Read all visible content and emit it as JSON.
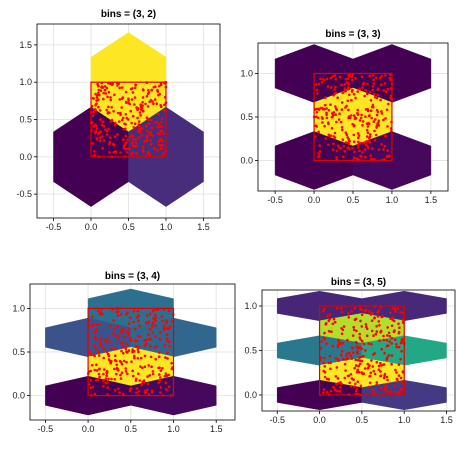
{
  "chart_data": [
    {
      "type": "heatmap",
      "subtype": "hexbin",
      "title": "bins = (3, 2)",
      "xlim": [
        -0.72,
        1.72
      ],
      "ylim": [
        -0.82,
        1.78
      ],
      "xticks": [
        "-0.5",
        "0.0",
        "0.5",
        "1.0",
        "1.5"
      ],
      "xtick_values": [
        -0.5,
        0,
        0.5,
        1,
        1.5
      ],
      "yticks": [
        "-0.5",
        "0.0",
        "0.5",
        "1.0",
        "1.5"
      ],
      "ytick_values": [
        -0.5,
        0,
        0.5,
        1,
        1.5
      ],
      "grid": true,
      "hexagons": [
        {
          "cx": 0.5,
          "cy": 1.0,
          "color": "#fde725"
        },
        {
          "cx": 0.0,
          "cy": 0.0,
          "color": "#440154"
        },
        {
          "cx": 1.0,
          "cy": 0.0,
          "color": "#472d7b"
        }
      ],
      "rect": {
        "x0": 0,
        "y0": 0,
        "x1": 1,
        "y1": 1,
        "color": "#e00000"
      },
      "points": {
        "count": 300,
        "color": "#ff0000",
        "range": [
          0,
          1
        ]
      }
    },
    {
      "type": "heatmap",
      "subtype": "hexbin",
      "title": "bins = (3, 3)",
      "xlim": [
        -0.72,
        1.72
      ],
      "ylim": [
        -0.35,
        1.35
      ],
      "xticks": [
        "-0.5",
        "0.0",
        "0.5",
        "1.0",
        "1.5"
      ],
      "xtick_values": [
        -0.5,
        0,
        0.5,
        1,
        1.5
      ],
      "yticks": [
        "0.0",
        "0.5",
        "1.0"
      ],
      "ytick_values": [
        0,
        0.5,
        1
      ],
      "grid": true,
      "hexagons": [
        {
          "cx": 0.0,
          "cy": 1.0,
          "color": "#440154"
        },
        {
          "cx": 1.0,
          "cy": 1.0,
          "color": "#440154"
        },
        {
          "cx": 0.5,
          "cy": 0.5,
          "color": "#fde725"
        },
        {
          "cx": 0.0,
          "cy": 0.0,
          "color": "#440154"
        },
        {
          "cx": 1.0,
          "cy": 0.0,
          "color": "#46085c"
        }
      ],
      "rect": {
        "x0": 0,
        "y0": 0,
        "x1": 1,
        "y1": 1,
        "color": "#e00000"
      },
      "points": {
        "count": 300,
        "color": "#ff0000",
        "range": [
          0,
          1
        ]
      }
    },
    {
      "type": "heatmap",
      "subtype": "hexbin",
      "title": "bins = (3, 4)",
      "xlim": [
        -0.68,
        1.72
      ],
      "ylim": [
        -0.28,
        1.28
      ],
      "xticks": [
        "-0.5",
        "0.0",
        "0.5",
        "1.0",
        "1.5"
      ],
      "xtick_values": [
        -0.5,
        0,
        0.5,
        1,
        1.5
      ],
      "yticks": [
        "0.0",
        "0.5",
        "1.0"
      ],
      "ytick_values": [
        0,
        0.5,
        1
      ],
      "grid": true,
      "hexagons": [
        {
          "cx": 0.5,
          "cy": 1.0,
          "color": "#2c6f8e"
        },
        {
          "cx": 0.0,
          "cy": 0.6667,
          "color": "#3b528b"
        },
        {
          "cx": 1.0,
          "cy": 0.6667,
          "color": "#31668e"
        },
        {
          "cx": 0.5,
          "cy": 0.3333,
          "color": "#fde725"
        },
        {
          "cx": 0.0,
          "cy": 0.0,
          "color": "#440154"
        },
        {
          "cx": 1.0,
          "cy": 0.0,
          "color": "#46085c"
        }
      ],
      "rect": {
        "x0": 0,
        "y0": 0,
        "x1": 1,
        "y1": 1,
        "color": "#e00000"
      },
      "points": {
        "count": 300,
        "color": "#ff0000",
        "range": [
          0,
          1
        ]
      }
    },
    {
      "type": "heatmap",
      "subtype": "hexbin",
      "title": "bins = (3, 5)",
      "xlim": [
        -0.68,
        1.6
      ],
      "ylim": [
        -0.18,
        1.18
      ],
      "xticks": [
        "-0.5",
        "0.0",
        "0.5",
        "1.0",
        "1.5"
      ],
      "xtick_values": [
        -0.5,
        0,
        0.5,
        1,
        1.5
      ],
      "yticks": [
        "0.0",
        "0.5",
        "1.0"
      ],
      "ytick_values": [
        0,
        0.5,
        1
      ],
      "grid": true,
      "hexagons": [
        {
          "cx": 0.0,
          "cy": 1.0,
          "color": "#482576"
        },
        {
          "cx": 1.0,
          "cy": 1.0,
          "color": "#482878"
        },
        {
          "cx": 0.5,
          "cy": 0.75,
          "color": "#b5de2b"
        },
        {
          "cx": 0.0,
          "cy": 0.5,
          "color": "#2a788e"
        },
        {
          "cx": 1.0,
          "cy": 0.5,
          "color": "#22a884"
        },
        {
          "cx": 0.5,
          "cy": 0.25,
          "color": "#fde725"
        },
        {
          "cx": 0.0,
          "cy": 0.0,
          "color": "#440154"
        },
        {
          "cx": 1.0,
          "cy": 0.0,
          "color": "#443983"
        }
      ],
      "rect": {
        "x0": 0,
        "y0": 0,
        "x1": 1,
        "y1": 1,
        "color": "#e00000"
      },
      "points": {
        "count": 300,
        "color": "#ff0000",
        "range": [
          0,
          1
        ]
      }
    }
  ]
}
